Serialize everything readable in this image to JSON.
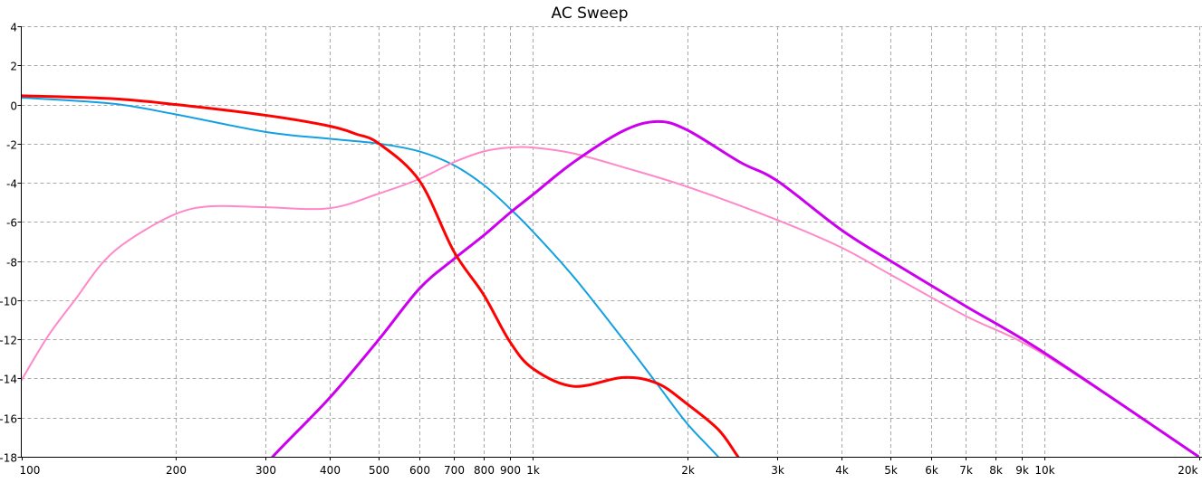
{
  "chart_data": {
    "type": "line",
    "title": "AC Sweep",
    "xlabel": "",
    "ylabel": "",
    "xscale": "log",
    "xlim": [
      100,
      20000
    ],
    "ylim": [
      -18,
      4
    ],
    "grid": true,
    "x_ticks": [
      {
        "v": 100,
        "label": "100"
      },
      {
        "v": 200,
        "label": "200"
      },
      {
        "v": 300,
        "label": "300"
      },
      {
        "v": 400,
        "label": "400"
      },
      {
        "v": 500,
        "label": "500"
      },
      {
        "v": 600,
        "label": "600"
      },
      {
        "v": 700,
        "label": "700"
      },
      {
        "v": 800,
        "label": "800"
      },
      {
        "v": 900,
        "label": "900"
      },
      {
        "v": 1000,
        "label": "1k"
      },
      {
        "v": 2000,
        "label": "2k"
      },
      {
        "v": 3000,
        "label": "3k"
      },
      {
        "v": 4000,
        "label": "4k"
      },
      {
        "v": 5000,
        "label": "5k"
      },
      {
        "v": 6000,
        "label": "6k"
      },
      {
        "v": 7000,
        "label": "7k"
      },
      {
        "v": 8000,
        "label": "8k"
      },
      {
        "v": 9000,
        "label": "9k"
      },
      {
        "v": 10000,
        "label": "10k"
      },
      {
        "v": 20000,
        "label": "20k"
      }
    ],
    "y_ticks": [
      {
        "v": 4,
        "label": "4"
      },
      {
        "v": 2,
        "label": "2"
      },
      {
        "v": 0,
        "label": "0"
      },
      {
        "v": -2,
        "label": "-2"
      },
      {
        "v": -4,
        "label": "-4"
      },
      {
        "v": -6,
        "label": "-6"
      },
      {
        "v": -8,
        "label": "-8"
      },
      {
        "v": -10,
        "label": "-10"
      },
      {
        "v": -12,
        "label": "-12"
      },
      {
        "v": -14,
        "label": "-14"
      },
      {
        "v": -16,
        "label": "-16"
      },
      {
        "v": -18,
        "label": "-18"
      }
    ],
    "series": [
      {
        "name": "blue",
        "color": "#12a0e2",
        "width": 2,
        "x": [
          100,
          150,
          200,
          300,
          400,
          500,
          600,
          700,
          800,
          900,
          1000,
          1200,
          1500,
          1750,
          2000,
          2300,
          2500
        ],
        "y": [
          0.35,
          0.05,
          -0.5,
          -1.4,
          -1.75,
          -2.0,
          -2.4,
          -3.1,
          -4.1,
          -5.3,
          -6.5,
          -8.8,
          -12.0,
          -14.3,
          -16.3,
          -18.0,
          -19.2
        ]
      },
      {
        "name": "pink",
        "color": "#ff88c8",
        "width": 2,
        "x": [
          100,
          113,
          128,
          144,
          163,
          200,
          235,
          300,
          400,
          500,
          600,
          700,
          800,
          900,
          1000,
          1200,
          1500,
          2000,
          3000,
          4000,
          5000,
          7000,
          10000,
          20000
        ],
        "y": [
          -14.1,
          -11.8,
          -9.9,
          -8.1,
          -6.9,
          -5.6,
          -5.2,
          -5.25,
          -5.3,
          -4.55,
          -3.8,
          -2.95,
          -2.4,
          -2.2,
          -2.2,
          -2.5,
          -3.2,
          -4.2,
          -5.9,
          -7.3,
          -8.7,
          -10.8,
          -12.8,
          -18.0
        ]
      },
      {
        "name": "purple",
        "color": "#cc00ee",
        "width": 3,
        "x": [
          280,
          310,
          400,
          500,
          600,
          700,
          800,
          900,
          1000,
          1200,
          1500,
          1750,
          2000,
          2540,
          3000,
          4000,
          5000,
          7000,
          10000,
          20000
        ],
        "y": [
          -19.5,
          -18.0,
          -15.0,
          -12.0,
          -9.4,
          -7.9,
          -6.7,
          -5.55,
          -4.6,
          -2.95,
          -1.35,
          -0.87,
          -1.3,
          -2.95,
          -3.9,
          -6.4,
          -8.0,
          -10.3,
          -12.7,
          -18.0
        ]
      },
      {
        "name": "red",
        "color": "#ff0000",
        "width": 3,
        "x": [
          100,
          150,
          200,
          300,
          400,
          450,
          500,
          600,
          700,
          800,
          900,
          1000,
          1200,
          1500,
          1750,
          2000,
          2300,
          2500,
          2700
        ],
        "y": [
          0.45,
          0.3,
          0.0,
          -0.55,
          -1.1,
          -1.5,
          -2.0,
          -3.9,
          -7.5,
          -9.7,
          -12.1,
          -13.5,
          -14.4,
          -13.95,
          -14.25,
          -15.3,
          -16.6,
          -17.9,
          -19.2
        ]
      }
    ]
  }
}
